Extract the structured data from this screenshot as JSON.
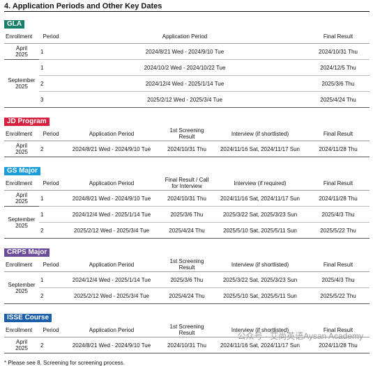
{
  "title": "4. Application Periods and Other Key Dates",
  "sections": [
    {
      "label": "GLA",
      "color": "#15806c",
      "headers": [
        "Enrollment",
        "Period",
        "Application Period",
        "Final Result"
      ],
      "groups": [
        {
          "enrollment": "April 2025",
          "rows": [
            [
              1,
              "2024/8/21 Wed - 2024/9/10 Tue",
              "2024/10/31 Thu"
            ]
          ]
        },
        {
          "enrollment": "September 2025",
          "rows": [
            [
              1,
              "2024/10/2 Wed - 2024/10/22 Tue",
              "2024/12/5 Thu"
            ],
            [
              2,
              "2024/12/4 Wed - 2025/1/14 Tue",
              "2025/3/6 Thu"
            ],
            [
              3,
              "2025/2/12 Wed - 2025/3/4 Tue",
              "2025/4/24 Thu"
            ]
          ]
        }
      ]
    },
    {
      "label": "JD Program",
      "color": "#d7203f",
      "headers": [
        "Enrollment",
        "Period",
        "Application Period",
        "1st Screening Result",
        "Interview (if shortlisted)",
        "Final Result"
      ],
      "groups": [
        {
          "enrollment": "April 2025",
          "rows": [
            [
              2,
              "2024/8/21 Wed - 2024/9/10 Tue",
              "2024/10/31 Thu",
              "2024/11/16 Sat, 2024/11/17 Sun",
              "2024/11/28 Thu"
            ]
          ]
        }
      ]
    },
    {
      "label": "GS Major",
      "color": "#1c9fd8",
      "headers": [
        "Enrollment",
        "Period",
        "Application Period",
        "Final Result / Call for Interview",
        "Interview (if required)",
        "Final Result"
      ],
      "groups": [
        {
          "enrollment": "April 2025",
          "rows": [
            [
              1,
              "2024/8/21 Wed - 2024/9/10 Tue",
              "2024/10/31 Thu",
              "2024/11/16 Sat, 2024/11/17 Sun",
              "2024/11/28 Thu"
            ]
          ]
        },
        {
          "enrollment": "September 2025",
          "rows": [
            [
              1,
              "2024/12/4 Wed - 2025/1/14 Tue",
              "2025/3/6 Thu",
              "2025/3/22 Sat, 2025/3/23 Sun",
              "2025/4/3 Thu"
            ],
            [
              2,
              "2025/2/12 Wed - 2025/3/4 Tue",
              "2025/4/24 Thu",
              "2025/5/10 Sat, 2025/5/11 Sun",
              "2025/5/22 Thu"
            ]
          ]
        }
      ]
    },
    {
      "label": "CRPS Major",
      "color": "#6b4c9a",
      "headers": [
        "Enrollment",
        "Period",
        "Application Period",
        "1st Screening Result",
        "Interview (if shortlisted)",
        "Final Result"
      ],
      "groups": [
        {
          "enrollment": "September 2025",
          "rows": [
            [
              1,
              "2024/12/4 Wed - 2025/1/14 Tue",
              "2025/3/6 Thu",
              "2025/3/22 Sat, 2025/3/23 Sun",
              "2025/4/3 Thu"
            ],
            [
              2,
              "2025/2/12 Wed - 2025/3/4 Tue",
              "2025/4/24 Thu",
              "2025/5/10 Sat, 2025/5/11 Sun",
              "2025/5/22 Thu"
            ]
          ]
        }
      ]
    },
    {
      "label": "ISSE Course",
      "color": "#1b5fab",
      "headers": [
        "Enrollment",
        "Period",
        "Application Period",
        "1st Screening Result",
        "Interview (if shortlisted)",
        "Final Result"
      ],
      "groups": [
        {
          "enrollment": "April 2025",
          "rows": [
            [
              2,
              "2024/8/21 Wed - 2024/9/10 Tue",
              "2024/10/31 Thu",
              "2024/11/16 Sat, 2024/11/17 Sun",
              "2024/11/28 Thu"
            ]
          ]
        }
      ]
    }
  ],
  "footnote": "* Please see 8. Screening for screening process.",
  "watermark": "公众号 · 艾尚英语Aysan Academy"
}
